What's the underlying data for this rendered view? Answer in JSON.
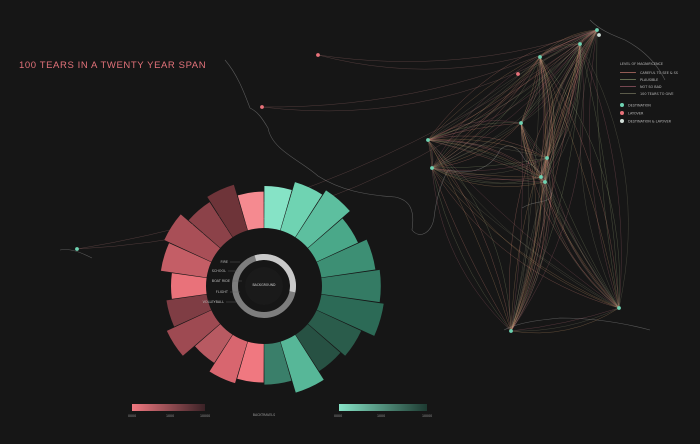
{
  "title": "100 TEARS IN A TWENTY YEAR SPAN",
  "colors": {
    "background": "#161616",
    "coral": "#e9727a",
    "teal": "#6fd3b2",
    "coast": "#6b6b6b"
  },
  "legend": {
    "header": "LEVEL OF MAGNIFICENCE",
    "lines": [
      {
        "label": "CAREFUL TO SEE & SS",
        "color": "#e68b7f"
      },
      {
        "label": "PLAUSIBLE",
        "color": "#9aa77a"
      },
      {
        "label": "NOT SO BAD",
        "color": "#b7697a"
      },
      {
        "label": "100 TEARS TO GIVE",
        "color": "#8a8a6e"
      }
    ],
    "dots": [
      {
        "label": "DESTINATION",
        "color": "#6fd3b2"
      },
      {
        "label": "LAYOVER",
        "color": "#e9727a"
      },
      {
        "label": "DESTINATION & LAYOVER",
        "color": "#d3dfd9"
      }
    ]
  },
  "center": {
    "label": "BACKGROUND",
    "inner_labels": [
      "FIRE",
      "SCHOOL",
      "BOAT RIDE",
      "FLIGHT",
      "VOLLEYBALL"
    ]
  },
  "bottom": {
    "left_ticks": [
      "0000",
      "1000",
      "10000"
    ],
    "middle_label": "BACKTRAVELS",
    "right_ticks": [
      "0000",
      "1000",
      "10000"
    ]
  },
  "radial": {
    "left_segments": [
      0.55,
      0.62,
      0.48,
      0.7,
      0.58,
      0.5,
      0.66,
      0.74,
      0.6,
      0.68,
      0.52
    ],
    "right_segments": [
      0.6,
      0.72,
      0.8,
      0.65,
      0.78,
      0.84,
      0.9,
      0.7,
      0.62,
      0.76,
      0.58
    ]
  }
}
